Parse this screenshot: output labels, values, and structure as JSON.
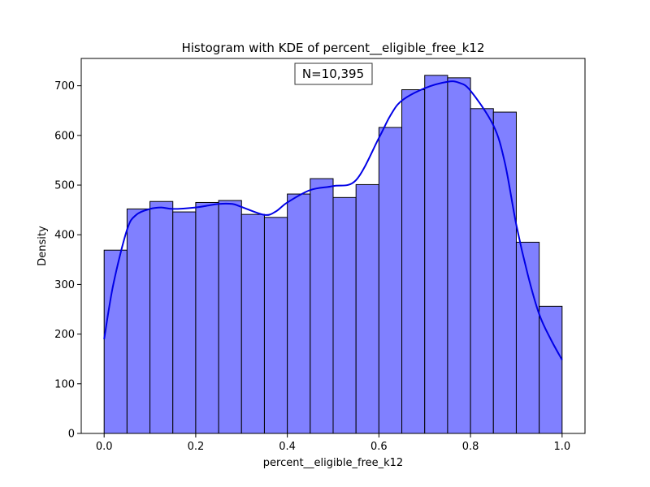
{
  "chart_data": {
    "type": "bar",
    "title": "Histogram with KDE of percent__eligible_free_k12",
    "xlabel": "percent__eligible_free_k12",
    "ylabel": "Density",
    "xlim": [
      -0.05,
      1.05
    ],
    "ylim": [
      0,
      755
    ],
    "xticks": [
      "0.0",
      "0.2",
      "0.4",
      "0.6",
      "0.8",
      "1.0"
    ],
    "yticks": [
      "0",
      "100",
      "200",
      "300",
      "400",
      "500",
      "600",
      "700"
    ],
    "bin_edges": [
      0.0,
      0.05,
      0.1,
      0.15,
      0.2,
      0.25,
      0.3,
      0.35,
      0.4,
      0.45,
      0.5,
      0.55,
      0.6,
      0.65,
      0.7,
      0.75,
      0.8,
      0.85,
      0.9,
      0.95,
      1.0
    ],
    "series": [
      {
        "type": "histogram",
        "values": [
          369,
          452,
          467,
          446,
          465,
          469,
          441,
          435,
          482,
          513,
          475,
          501,
          616,
          692,
          721,
          716,
          654,
          647,
          385,
          256
        ],
        "color": "#8080ff"
      },
      {
        "type": "kde",
        "x": [
          0.0,
          0.02,
          0.05,
          0.07,
          0.1,
          0.125,
          0.15,
          0.2,
          0.25,
          0.28,
          0.3,
          0.35,
          0.375,
          0.4,
          0.45,
          0.5,
          0.55,
          0.6,
          0.625,
          0.65,
          0.7,
          0.75,
          0.775,
          0.8,
          0.85,
          0.875,
          0.9,
          0.925,
          0.95,
          0.975,
          1.0
        ],
        "y": [
          190,
          300,
          410,
          440,
          452,
          455,
          452,
          455,
          462,
          462,
          456,
          440,
          447,
          465,
          490,
          498,
          510,
          595,
          640,
          670,
          695,
          708,
          706,
          690,
          620,
          545,
          420,
          320,
          240,
          190,
          148
        ],
        "color": "#0000e6"
      }
    ],
    "annotation": "N=10,395",
    "grid": false
  }
}
